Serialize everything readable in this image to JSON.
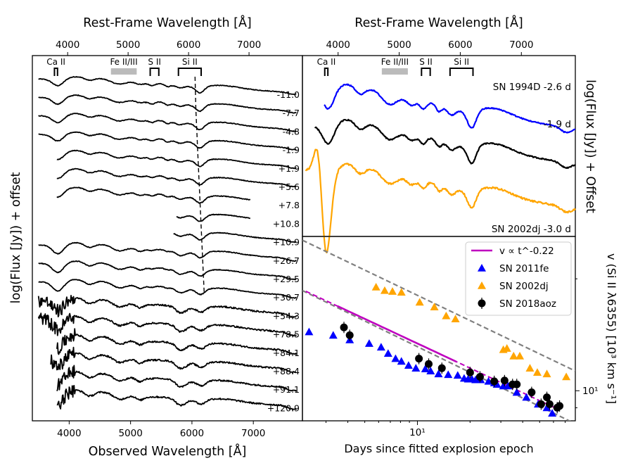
{
  "chart_data": [
    {
      "type": "line",
      "panel": "left",
      "title_top": "Rest-Frame Wavelength [Å]",
      "xlabel": "Observed Wavelength [Å]",
      "ylabel": "log(Flux [Jy]) + offset",
      "x_ticks": [
        4000,
        5000,
        6000,
        7000
      ],
      "x_top_ticks": [
        4000,
        5000,
        6000,
        7000
      ],
      "xlim": [
        3400,
        7800
      ],
      "line_markers": [
        {
          "label": "Ca II",
          "range": [
            3760,
            3810
          ],
          "style": "bracket"
        },
        {
          "label": "Fe II/III",
          "range": [
            4680,
            5100
          ],
          "style": "bar"
        },
        {
          "label": "S II",
          "range": [
            5320,
            5460
          ],
          "style": "bracket"
        },
        {
          "label": "Si II",
          "range": [
            5780,
            6150
          ],
          "style": "bracket"
        }
      ],
      "epochs": [
        "-11.0",
        "-7.7",
        "-4.8",
        "-1.9",
        "+1.9",
        "+5.6",
        "+7.8",
        "+10.8",
        "+10.9",
        "+26.7",
        "+29.5",
        "+30.7",
        "+54.3",
        "+78.5",
        "+84.1",
        "+88.4",
        "+91.1",
        "+120.9"
      ],
      "si_velocity_track": {
        "x_start": 6050,
        "x_end": 6200
      }
    },
    {
      "type": "line",
      "panel": "top-right",
      "title_top": "Rest-Frame Wavelength [Å]",
      "ylabel": "log(Flux [Jy]) + Offset",
      "x_top_ticks": [
        4000,
        5000,
        6000,
        7000
      ],
      "xlim": [
        3400,
        7800
      ],
      "line_markers": [
        {
          "label": "Ca II",
          "range": [
            3760,
            3810
          ],
          "style": "bracket"
        },
        {
          "label": "Fe II/III",
          "range": [
            4680,
            5100
          ],
          "style": "bar"
        },
        {
          "label": "S II",
          "range": [
            5320,
            5460
          ],
          "style": "bracket"
        },
        {
          "label": "Si II",
          "range": [
            5780,
            6150
          ],
          "style": "bracket"
        }
      ],
      "series": [
        {
          "name": "SN 1994D -2.6 d",
          "color": "#0000ff"
        },
        {
          "name": "-1.9 d",
          "color": "#000000"
        },
        {
          "name": "SN 2002dj -3.0 d",
          "color": "#ffa500"
        }
      ]
    },
    {
      "type": "scatter",
      "panel": "bottom-right",
      "xlabel": "Days since fitted explosion epoch",
      "ylabel": "v (Si II λ6355) [10³ km s⁻¹]",
      "xscale": "log",
      "yscale": "log",
      "xlim": [
        2.2,
        80
      ],
      "ylim": [
        8.3,
        26
      ],
      "x_tick_labels": [
        "10¹"
      ],
      "y_tick_labels": [
        "10¹"
      ],
      "legend": {
        "position": "top-right",
        "entries": [
          {
            "label": "v ∝ t^-0.22",
            "color": "#bf00bf",
            "marker": "line"
          },
          {
            "label": "SN 2011fe",
            "color": "#0000ff",
            "marker": "triangle"
          },
          {
            "label": "SN 2002dj",
            "color": "#ffa500",
            "marker": "triangle"
          },
          {
            "label": "SN 2018aoz",
            "color": "#000000",
            "marker": "circle"
          }
        ]
      },
      "power_law": {
        "exponent": -0.22,
        "solid_range": [
          3.5,
          17
        ],
        "dashed_range": [
          2.3,
          62
        ],
        "v_at_10": 13.4
      },
      "grey_bounds": [
        {
          "points": [
            [
              2.2,
              25.4
            ],
            [
              80,
              11.3
            ]
          ]
        },
        {
          "points": [
            [
              2.2,
              18.6
            ],
            [
              80,
              8.15
            ]
          ]
        }
      ],
      "series": [
        {
          "name": "SN 2011fe",
          "color": "#0000ff",
          "x": [
            2.4,
            3.3,
            4.1,
            5.3,
            6.2,
            6.8,
            7.5,
            8.1,
            8.9,
            9.8,
            11.1,
            11.9,
            13.2,
            15.0,
            17.0,
            18.5,
            19.5,
            20.5,
            21.5,
            23.0,
            25.5,
            27.5,
            28.5,
            31.0,
            33.0,
            37.0,
            42.0,
            49.0,
            55.0,
            59.0
          ],
          "y": [
            14.4,
            14.1,
            13.7,
            13.4,
            13.1,
            12.6,
            12.2,
            12.0,
            11.7,
            11.5,
            11.45,
            11.3,
            11.1,
            11.05,
            11.0,
            10.8,
            10.75,
            10.75,
            10.7,
            10.7,
            10.6,
            10.5,
            10.4,
            10.3,
            10.3,
            9.9,
            9.6,
            9.2,
            9.0,
            8.7
          ]
        },
        {
          "name": "SN 2002dj",
          "color": "#ffa500",
          "x": [
            5.8,
            6.5,
            7.2,
            8.1,
            10.3,
            12.5,
            14.6,
            16.5,
            31.0,
            32.5,
            35.5,
            38.5,
            44.0,
            48.5,
            55.0,
            71.0
          ],
          "y": [
            19.0,
            18.6,
            18.5,
            18.4,
            17.3,
            16.8,
            15.9,
            15.6,
            12.9,
            13.0,
            12.4,
            12.4,
            11.5,
            11.2,
            11.1,
            10.9
          ]
        },
        {
          "name": "SN 2018aoz",
          "color": "#000000",
          "x": [
            3.8,
            4.1,
            10.2,
            11.6,
            13.8,
            20.0,
            22.8,
            27.5,
            31.5,
            35.0,
            37.0,
            45.0,
            51.0,
            55.0,
            57.0,
            63.0,
            65.0
          ],
          "y": [
            14.8,
            14.1,
            12.2,
            11.8,
            11.5,
            11.2,
            10.9,
            10.6,
            10.65,
            10.4,
            10.4,
            9.9,
            9.2,
            9.6,
            9.2,
            9.0,
            9.1
          ]
        }
      ]
    }
  ]
}
